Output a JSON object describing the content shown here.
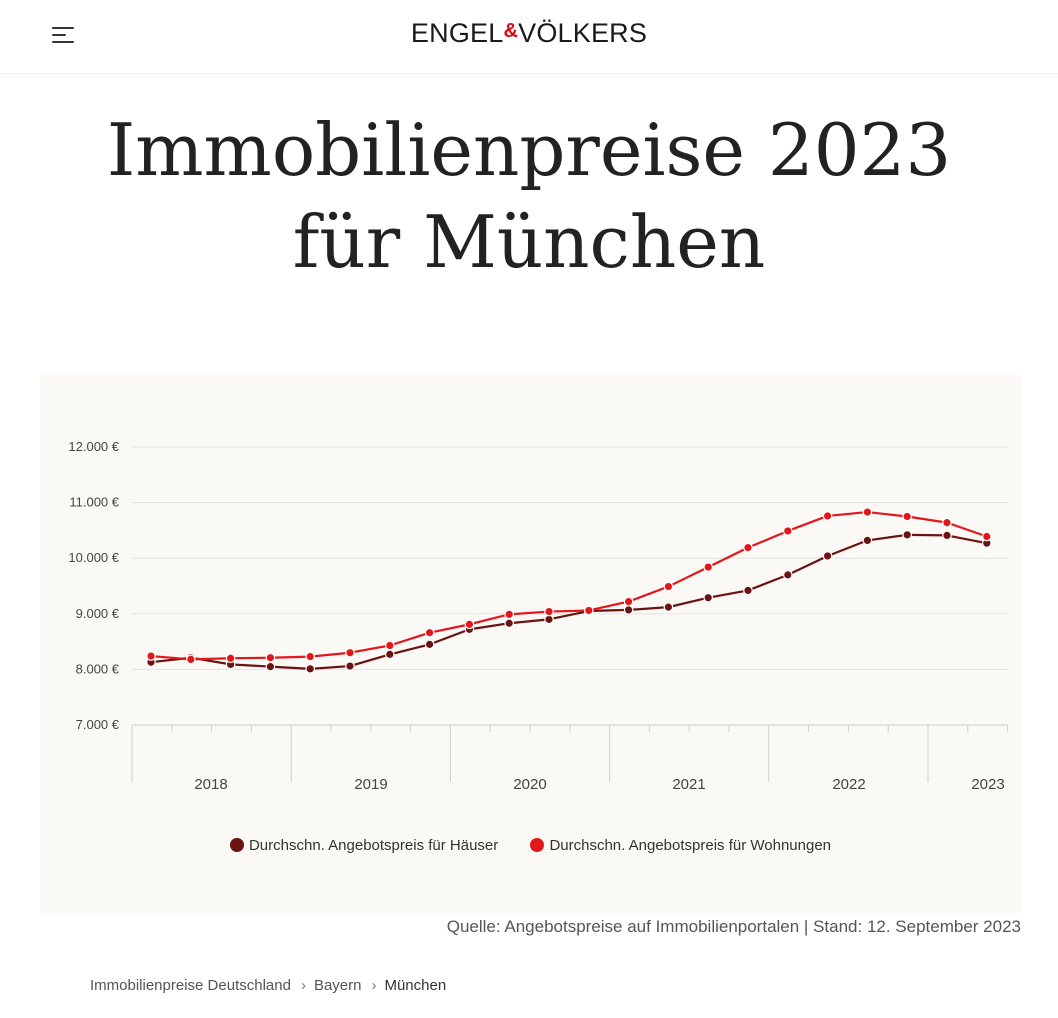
{
  "header": {
    "logo_left": "ENGEL",
    "logo_amp": "&",
    "logo_right": "VÖLKERS",
    "menu_icon": "hamburger-menu-icon"
  },
  "page": {
    "title_line1": "Immobilienpreise 2023",
    "title_line2": "für München"
  },
  "source_text": "Quelle: Angebotspreise auf Immobilienportalen | Stand: 12. September 2023",
  "breadcrumb": {
    "items": [
      "Immobilienpreise Deutschland",
      "Bayern",
      "München"
    ],
    "separator": "›"
  },
  "colors": {
    "accent": "#e30613",
    "houses": "#6b1212",
    "apartments": "#e3161b",
    "panel": "#faf9f5"
  },
  "chart_data": {
    "type": "line",
    "ylim": [
      7000,
      12000
    ],
    "y_ticks": [
      {
        "value": 7000,
        "label": "7.000 €"
      },
      {
        "value": 8000,
        "label": "8.000 €"
      },
      {
        "value": 9000,
        "label": "9.000 €"
      },
      {
        "value": 10000,
        "label": "10.000 €"
      },
      {
        "value": 11000,
        "label": "11.000 €"
      },
      {
        "value": 12000,
        "label": "12.000 €"
      }
    ],
    "x_labels": [
      "2018",
      "2019",
      "2020",
      "2021",
      "2022",
      "2023"
    ],
    "grid": true,
    "legend_position": "bottom",
    "series": [
      {
        "name": "Durchschn. Angebotspreis für Häuser",
        "color": "#6b1212",
        "values": [
          8130,
          8210,
          8090,
          8050,
          8010,
          8060,
          8270,
          8450,
          8720,
          8830,
          8900,
          9050,
          9070,
          9120,
          9290,
          9420,
          9700,
          10040,
          10320,
          10420,
          10410,
          10270
        ]
      },
      {
        "name": "Durchschn. Angebotspreis für Wohnungen",
        "color": "#e3161b",
        "values": [
          8240,
          8180,
          8200,
          8210,
          8230,
          8300,
          8430,
          8660,
          8810,
          8990,
          9040,
          9060,
          9220,
          9490,
          9840,
          10190,
          10490,
          10760,
          10830,
          10750,
          10640,
          10390
        ]
      }
    ]
  }
}
